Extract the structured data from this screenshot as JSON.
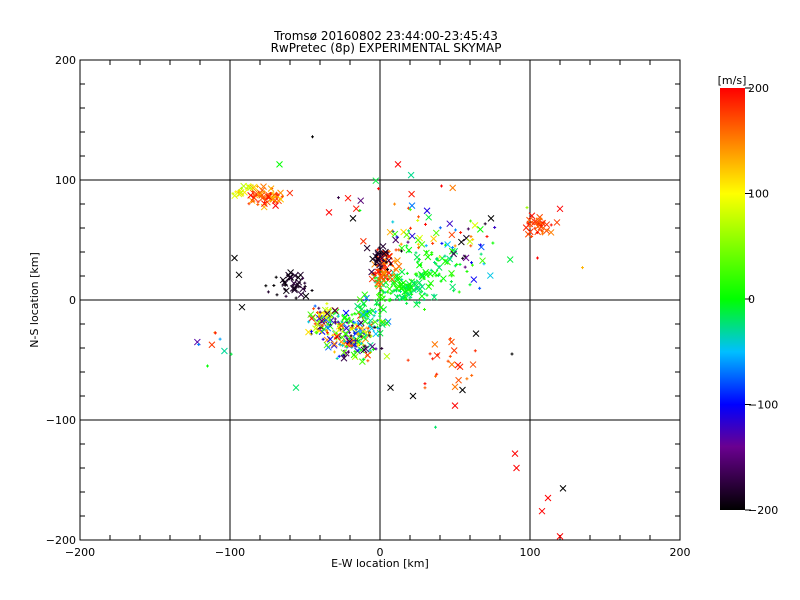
{
  "chart_data": {
    "type": "scatter",
    "title": "Tromsø 20160802 23:44:00-23:45:43",
    "subtitle": "RwPretec (8p) EXPERIMENTAL SKYMAP",
    "xlabel": "E-W location [km]",
    "ylabel": "N-S location [km]",
    "xlim": [
      -200,
      200
    ],
    "ylim": [
      -200,
      200
    ],
    "x_ticks": [
      -200,
      -100,
      0,
      100,
      200
    ],
    "y_ticks": [
      -200,
      -100,
      0,
      100,
      200
    ],
    "grid": true,
    "colorbar": {
      "unit": "[m/s]",
      "range": [
        -200,
        200
      ],
      "ticks": [
        200,
        100,
        0,
        -100,
        -200
      ]
    },
    "markers": {
      "large": "x",
      "small": "+"
    },
    "clusters": [
      {
        "cx": -76,
        "cy": 86,
        "sx": 10,
        "sy": 6,
        "n": 60,
        "vmin": 120,
        "vmax": 200
      },
      {
        "cx": -92,
        "cy": 90,
        "sx": 5,
        "sy": 4,
        "n": 14,
        "vmin": 60,
        "vmax": 120
      },
      {
        "cx": 106,
        "cy": 62,
        "sx": 7,
        "sy": 6,
        "n": 38,
        "vmin": 150,
        "vmax": 200
      },
      {
        "cx": -58,
        "cy": 12,
        "sx": 9,
        "sy": 8,
        "n": 40,
        "vmin": -200,
        "vmax": -175
      },
      {
        "cx": -35,
        "cy": -18,
        "sx": 10,
        "sy": 10,
        "n": 90,
        "vmin": -200,
        "vmax": 200
      },
      {
        "cx": -18,
        "cy": -32,
        "sx": 12,
        "sy": 12,
        "n": 150,
        "vmin": -200,
        "vmax": 200
      },
      {
        "cx": -8,
        "cy": -12,
        "sx": 9,
        "sy": 9,
        "n": 50,
        "vmin": -70,
        "vmax": 30
      },
      {
        "cx": 15,
        "cy": 10,
        "sx": 14,
        "sy": 10,
        "n": 120,
        "vmin": -30,
        "vmax": 20
      },
      {
        "cx": 38,
        "cy": 28,
        "sx": 14,
        "sy": 14,
        "n": 60,
        "vmin": -30,
        "vmax": 20
      },
      {
        "cx": 4,
        "cy": 28,
        "sx": 6,
        "sy": 10,
        "n": 70,
        "vmin": 140,
        "vmax": 200
      },
      {
        "cx": 0,
        "cy": 35,
        "sx": 5,
        "sy": 7,
        "n": 30,
        "vmin": -200,
        "vmax": -170
      },
      {
        "cx": 25,
        "cy": 50,
        "sx": 30,
        "sy": 14,
        "n": 40,
        "vmin": -200,
        "vmax": 200
      },
      {
        "cx": 45,
        "cy": -55,
        "sx": 15,
        "sy": 15,
        "n": 24,
        "vmin": 150,
        "vmax": 200
      },
      {
        "cx": 62,
        "cy": 40,
        "sx": 20,
        "sy": 20,
        "n": 30,
        "vmin": -200,
        "vmax": 200
      },
      {
        "cx": -110,
        "cy": -40,
        "sx": 10,
        "sy": 20,
        "n": 8,
        "vmin": -150,
        "vmax": 200
      },
      {
        "cx": 10,
        "cy": 85,
        "sx": 30,
        "sy": 20,
        "n": 15,
        "vmin": -200,
        "vmax": 200
      }
    ],
    "points": [
      {
        "x": 90,
        "y": -128,
        "v": 200,
        "m": "x"
      },
      {
        "x": 91,
        "y": -140,
        "v": 200,
        "m": "x"
      },
      {
        "x": 122,
        "y": -157,
        "v": -200,
        "m": "x"
      },
      {
        "x": 112,
        "y": -165,
        "v": 200,
        "m": "x"
      },
      {
        "x": 108,
        "y": -176,
        "v": 200,
        "m": "x"
      },
      {
        "x": 120,
        "y": -197,
        "v": 200,
        "m": "x"
      },
      {
        "x": 12,
        "y": 113,
        "v": 200,
        "m": "x"
      },
      {
        "x": -67,
        "y": 113,
        "v": 0,
        "m": "x"
      },
      {
        "x": -45,
        "y": 136,
        "v": -200,
        "m": "+"
      },
      {
        "x": -94,
        "y": 21,
        "v": -200,
        "m": "x"
      },
      {
        "x": -97,
        "y": 35,
        "v": -200,
        "m": "x"
      },
      {
        "x": -92,
        "y": -6,
        "v": -200,
        "m": "x"
      },
      {
        "x": -56,
        "y": -73,
        "v": -20,
        "m": "x"
      },
      {
        "x": 37,
        "y": -106,
        "v": -20,
        "m": "+"
      },
      {
        "x": 50,
        "y": -88,
        "v": 200,
        "m": "x"
      },
      {
        "x": 7,
        "y": -73,
        "v": -200,
        "m": "x"
      },
      {
        "x": 22,
        "y": -80,
        "v": -200,
        "m": "x"
      },
      {
        "x": 55,
        "y": -75,
        "v": -200,
        "m": "x"
      },
      {
        "x": 64,
        "y": -28,
        "v": -200,
        "m": "x"
      },
      {
        "x": 135,
        "y": 27,
        "v": 130,
        "m": "+"
      },
      {
        "x": 120,
        "y": 76,
        "v": 200,
        "m": "x"
      },
      {
        "x": 98,
        "y": 77,
        "v": 60,
        "m": "+"
      },
      {
        "x": 74,
        "y": 68,
        "v": -200,
        "m": "x"
      },
      {
        "x": -34,
        "y": 73,
        "v": 200,
        "m": "x"
      },
      {
        "x": -18,
        "y": 68,
        "v": -200,
        "m": "x"
      },
      {
        "x": 41,
        "y": 95,
        "v": 200,
        "m": "+"
      },
      {
        "x": 88,
        "y": -45,
        "v": -200,
        "m": "+"
      },
      {
        "x": 105,
        "y": 35,
        "v": 200,
        "m": "+"
      },
      {
        "x": -115,
        "y": -55,
        "v": 0,
        "m": "+"
      }
    ]
  }
}
